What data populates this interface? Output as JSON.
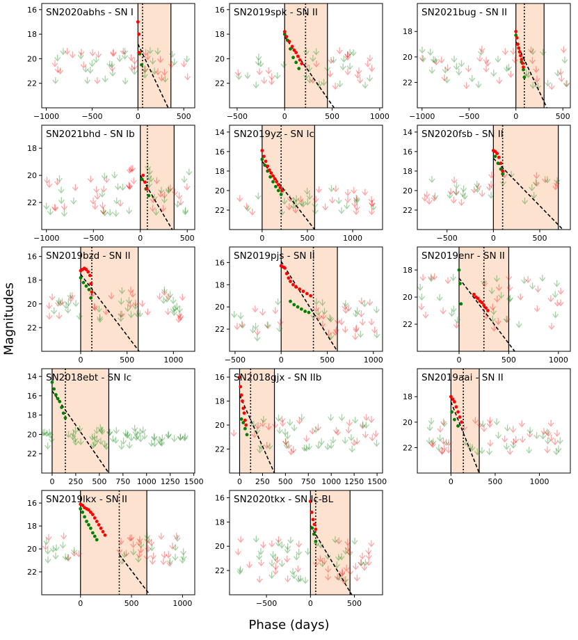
{
  "figure": {
    "xlabel": "Phase (days)",
    "ylabel": "Magnitudes"
  },
  "colors": {
    "red": "#ff0000",
    "green": "#008000",
    "window_fill": "#fde3cf",
    "fit_line": "#000000"
  },
  "chart_data": [
    {
      "type": "scatter",
      "title": "SN2020abhs - SN I",
      "xlim": [
        -1050,
        620
      ],
      "ylim": [
        24,
        15.5
      ],
      "xticks": [
        -1000,
        -500,
        0,
        500
      ],
      "yticks": [
        16,
        18,
        20,
        22
      ],
      "window": [
        0,
        360
      ],
      "peak": 50,
      "fit": [
        [
          0,
          18.8
        ],
        [
          330,
          24
        ]
      ],
      "det_r": [
        [
          0,
          17
        ],
        [
          10,
          18
        ],
        [
          15,
          19.5
        ]
      ],
      "det_g": [
        [
          10,
          19.5
        ],
        [
          20,
          19.6
        ],
        [
          40,
          20.5
        ]
      ],
      "ul_x": [
        -1000,
        550
      ],
      "ul_n": 60,
      "ul_mag": [
        19.5,
        22
      ]
    },
    {
      "type": "scatter",
      "title": "SN2019spk - SN II",
      "xlim": [
        -580,
        1030
      ],
      "ylim": [
        24,
        15.5
      ],
      "xticks": [
        -500,
        0,
        500,
        1000
      ],
      "yticks": [
        16,
        18,
        20,
        22
      ],
      "window": [
        0,
        450
      ],
      "peak": 220,
      "fit": [
        [
          0,
          18.2
        ],
        [
          520,
          24
        ]
      ],
      "det_r": [
        [
          0,
          17.8
        ],
        [
          20,
          18.2
        ],
        [
          50,
          18.6
        ],
        [
          80,
          19
        ],
        [
          100,
          19.3
        ],
        [
          120,
          19.5
        ],
        [
          140,
          19.8
        ],
        [
          160,
          20.1
        ],
        [
          180,
          20.4
        ]
      ],
      "det_g": [
        [
          0,
          18
        ],
        [
          30,
          18.5
        ],
        [
          60,
          19.2
        ],
        [
          90,
          19.9
        ],
        [
          120,
          20.3
        ],
        [
          150,
          20.8
        ]
      ],
      "ul_x": [
        -550,
        950
      ],
      "ul_n": 60,
      "ul_mag": [
        19.5,
        22.5
      ]
    },
    {
      "type": "scatter",
      "title": "SN2021bug - SN II",
      "xlim": [
        -1050,
        580
      ],
      "ylim": [
        24,
        15.8
      ],
      "xticks": [
        -1000,
        -500,
        0,
        500
      ],
      "yticks": [
        18,
        20,
        22
      ],
      "window": [
        0,
        300
      ],
      "peak": 90,
      "fit": [
        [
          0,
          18.8
        ],
        [
          330,
          24
        ]
      ],
      "det_r": [
        [
          0,
          18
        ],
        [
          10,
          18.5
        ],
        [
          20,
          19
        ],
        [
          30,
          19.3
        ],
        [
          40,
          19.6
        ],
        [
          50,
          19.9
        ],
        [
          60,
          20.2
        ],
        [
          70,
          20.5
        ],
        [
          80,
          20.8
        ]
      ],
      "det_g": [
        [
          0,
          18.3
        ],
        [
          20,
          19
        ],
        [
          40,
          19.6
        ],
        [
          60,
          20.4
        ],
        [
          80,
          21
        ],
        [
          90,
          21.6
        ]
      ],
      "ul_x": [
        -1000,
        550
      ],
      "ul_n": 60,
      "ul_mag": [
        19.5,
        22.5
      ]
    },
    {
      "type": "scatter",
      "title": "SN2021bhd - SN Ib",
      "xlim": [
        -1050,
        580
      ],
      "ylim": [
        24,
        16.3
      ],
      "xticks": [
        -1000,
        -500,
        0,
        500
      ],
      "yticks": [
        18,
        20,
        22
      ],
      "window": [
        0,
        360
      ],
      "peak": 75,
      "fit": [
        [
          0,
          20
        ],
        [
          340,
          24
        ]
      ],
      "det_r": [
        [
          30,
          20
        ],
        [
          50,
          20.5
        ],
        [
          70,
          21
        ]
      ],
      "det_g": [
        [
          20,
          20.3
        ],
        [
          60,
          21
        ],
        [
          90,
          21.5
        ]
      ],
      "ul_x": [
        -1000,
        520
      ],
      "ul_n": 70,
      "ul_mag": [
        19.5,
        23
      ]
    },
    {
      "type": "scatter",
      "title": "SN2019yz - SN Ic",
      "xlim": [
        -360,
        1330
      ],
      "ylim": [
        24,
        13.3
      ],
      "xticks": [
        0,
        500,
        1000
      ],
      "yticks": [
        14,
        16,
        18,
        20,
        22
      ],
      "window": [
        0,
        580
      ],
      "peak": 210,
      "fit": [
        [
          0,
          17
        ],
        [
          580,
          24
        ]
      ],
      "det_r": [
        [
          0,
          15.9
        ],
        [
          20,
          16.5
        ],
        [
          40,
          17
        ],
        [
          60,
          17.5
        ],
        [
          80,
          17.9
        ],
        [
          100,
          18.2
        ],
        [
          120,
          18.5
        ],
        [
          140,
          18.8
        ],
        [
          160,
          19.1
        ],
        [
          180,
          19.4
        ],
        [
          200,
          19.7
        ],
        [
          220,
          20
        ]
      ],
      "det_g": [
        [
          0,
          16.8
        ],
        [
          30,
          17.4
        ],
        [
          60,
          18
        ],
        [
          90,
          18.6
        ],
        [
          120,
          19.1
        ],
        [
          150,
          19.6
        ],
        [
          180,
          20
        ],
        [
          210,
          20.4
        ]
      ],
      "ul_x": [
        -300,
        1250
      ],
      "ul_n": 55,
      "ul_mag": [
        20,
        22.5
      ]
    },
    {
      "type": "scatter",
      "title": "SN2020fsb - SN II",
      "xlim": [
        -820,
        830
      ],
      "ylim": [
        24,
        13.3
      ],
      "xticks": [
        -500,
        0,
        500
      ],
      "yticks": [
        14,
        16,
        18,
        20,
        22
      ],
      "window": [
        0,
        700
      ],
      "peak": 100,
      "fit": [
        [
          0,
          16.7
        ],
        [
          750,
          24
        ]
      ],
      "det_r": [
        [
          0,
          15.9
        ],
        [
          20,
          16
        ],
        [
          40,
          16.2
        ],
        [
          60,
          16.6
        ],
        [
          80,
          17.2
        ],
        [
          100,
          18
        ]
      ],
      "det_g": [
        [
          20,
          16.5
        ],
        [
          50,
          17.2
        ],
        [
          80,
          17.8
        ],
        [
          100,
          18.3
        ]
      ],
      "ul_x": [
        -750,
        700
      ],
      "ul_n": 45,
      "ul_mag": [
        18.5,
        21.5
      ]
    },
    {
      "type": "scatter",
      "title": "SN2019bzd - SN II",
      "xlim": [
        -420,
        1230
      ],
      "ylim": [
        24,
        15.2
      ],
      "xticks": [
        0,
        500,
        1000
      ],
      "yticks": [
        16,
        18,
        20,
        22
      ],
      "window": [
        0,
        620
      ],
      "peak": 120,
      "fit": [
        [
          0,
          17.5
        ],
        [
          630,
          24
        ]
      ],
      "det_r": [
        [
          0,
          17.2
        ],
        [
          20,
          17.1
        ],
        [
          40,
          17
        ],
        [
          60,
          17.1
        ],
        [
          80,
          17.3
        ],
        [
          100,
          17.6
        ],
        [
          110,
          18.3
        ],
        [
          120,
          19
        ]
      ],
      "det_g": [
        [
          0,
          17.8
        ],
        [
          30,
          18.2
        ],
        [
          60,
          18.5
        ],
        [
          90,
          18.8
        ],
        [
          110,
          19.5
        ]
      ],
      "ul_x": [
        -400,
        1150
      ],
      "ul_n": 65,
      "ul_mag": [
        19,
        21.5
      ]
    },
    {
      "type": "scatter",
      "title": "SN2019pjs - SN II",
      "xlim": [
        -560,
        1100
      ],
      "ylim": [
        24,
        14.6
      ],
      "xticks": [
        -500,
        0,
        500,
        1000
      ],
      "yticks": [
        16,
        18,
        20,
        22
      ],
      "window": [
        0,
        610
      ],
      "peak": 350,
      "fit": [
        [
          0,
          15.9
        ],
        [
          610,
          24
        ]
      ],
      "det_r": [
        [
          0,
          16.3
        ],
        [
          20,
          16.4
        ],
        [
          40,
          16.5
        ],
        [
          60,
          17
        ],
        [
          80,
          17.4
        ],
        [
          100,
          17.7
        ],
        [
          130,
          18
        ],
        [
          160,
          18.2
        ],
        [
          200,
          18.4
        ],
        [
          240,
          18.6
        ],
        [
          280,
          18.8
        ],
        [
          320,
          19
        ]
      ],
      "det_g": [
        [
          100,
          19.5
        ],
        [
          140,
          19.8
        ],
        [
          180,
          20
        ],
        [
          220,
          20.2
        ],
        [
          260,
          20.4
        ],
        [
          300,
          20.5
        ]
      ],
      "ul_x": [
        -520,
        1050
      ],
      "ul_n": 75,
      "ul_mag": [
        19.5,
        23
      ]
    },
    {
      "type": "scatter",
      "title": "SN2019enr - SN II",
      "xlim": [
        -420,
        1120
      ],
      "ylim": [
        24,
        16.3
      ],
      "xticks": [
        0,
        500,
        1000
      ],
      "yticks": [
        18,
        20,
        22
      ],
      "window": [
        0,
        500
      ],
      "peak": 250,
      "fit": [
        [
          0,
          18.6
        ],
        [
          560,
          24
        ]
      ],
      "det_r": [
        [
          150,
          19.8
        ],
        [
          170,
          20
        ],
        [
          190,
          20.1
        ],
        [
          210,
          20.3
        ],
        [
          230,
          20.4
        ],
        [
          250,
          20.6
        ],
        [
          270,
          20.8
        ],
        [
          290,
          21
        ]
      ],
      "det_g": [
        [
          0,
          18
        ],
        [
          10,
          19
        ],
        [
          20,
          20.5
        ]
      ],
      "ul_x": [
        -400,
        1050
      ],
      "ul_n": 65,
      "ul_mag": [
        18.5,
        22.5
      ]
    },
    {
      "type": "scatter",
      "title": "SN2018ebt - SN Ic",
      "xlim": [
        -110,
        1510
      ],
      "ylim": [
        24,
        13.2
      ],
      "xticks": [
        0,
        250,
        500,
        750,
        1000,
        1250,
        1500
      ],
      "yticks": [
        14,
        16,
        18,
        20,
        22
      ],
      "window": [
        0,
        600
      ],
      "peak": 140,
      "fit": [
        [
          0,
          15.5
        ],
        [
          600,
          24
        ]
      ],
      "det_r": [],
      "det_g": [
        [
          0,
          14.6
        ],
        [
          20,
          15.3
        ],
        [
          40,
          15.9
        ],
        [
          60,
          16.3
        ],
        [
          80,
          16.6
        ],
        [
          100,
          17.2
        ],
        [
          120,
          17.8
        ],
        [
          140,
          18.3
        ]
      ],
      "ul_x": [
        -100,
        1450
      ],
      "ul_n": 70,
      "ul_mag": [
        19.5,
        21.5
      ],
      "ul_green_only": true
    },
    {
      "type": "scatter",
      "title": "SN2018gjx - SN IIb",
      "xlim": [
        -110,
        1560
      ],
      "ylim": [
        24,
        15.3
      ],
      "xticks": [
        0,
        250,
        500,
        750,
        1000,
        1250,
        1500
      ],
      "yticks": [
        16,
        18,
        20,
        22
      ],
      "window": [
        0,
        380
      ],
      "peak": 120,
      "fit": [
        [
          0,
          17.5
        ],
        [
          380,
          24
        ]
      ],
      "det_r": [
        [
          0,
          16
        ],
        [
          10,
          16.8
        ],
        [
          20,
          17.5
        ],
        [
          30,
          18
        ],
        [
          40,
          18.6
        ],
        [
          50,
          19
        ],
        [
          60,
          19.6
        ],
        [
          70,
          20
        ]
      ],
      "det_g": [
        [
          20,
          19.5
        ],
        [
          40,
          19.8
        ],
        [
          60,
          20.3
        ],
        [
          80,
          20.8
        ]
      ],
      "ul_x": [
        -80,
        1500
      ],
      "ul_n": 70,
      "ul_mag": [
        19.5,
        22.5
      ]
    },
    {
      "type": "scatter",
      "title": "SN2019aai - SN II",
      "xlim": [
        -380,
        1350
      ],
      "ylim": [
        24,
        15.8
      ],
      "xticks": [
        0,
        500,
        1000
      ],
      "yticks": [
        18,
        20,
        22
      ],
      "window": [
        0,
        320
      ],
      "peak": 140,
      "fit": [
        [
          0,
          18.4
        ],
        [
          320,
          24
        ]
      ],
      "det_r": [
        [
          0,
          18
        ],
        [
          20,
          18.2
        ],
        [
          40,
          18.4
        ],
        [
          60,
          18.8
        ],
        [
          80,
          19.2
        ],
        [
          100,
          19.6
        ],
        [
          120,
          20
        ]
      ],
      "det_g": [
        [
          10,
          19.2
        ],
        [
          40,
          19.8
        ],
        [
          80,
          20.3
        ]
      ],
      "ul_x": [
        -300,
        1250
      ],
      "ul_n": 65,
      "ul_mag": [
        20,
        22.5
      ]
    },
    {
      "type": "scatter",
      "title": "SN2019lkx - SN II",
      "xlim": [
        -380,
        1120
      ],
      "ylim": [
        24,
        14.9
      ],
      "xticks": [
        -500,
        0,
        500,
        1000
      ],
      "yticks": [
        16,
        18,
        20,
        22
      ],
      "window": [
        0,
        650
      ],
      "peak": 380,
      "fit": [
        [
          380,
          20.5
        ],
        [
          680,
          24
        ]
      ],
      "det_r": [
        [
          0,
          16.1
        ],
        [
          20,
          16.2
        ],
        [
          40,
          16.4
        ],
        [
          60,
          16.5
        ],
        [
          80,
          16.6
        ],
        [
          100,
          16.8
        ],
        [
          120,
          17
        ],
        [
          140,
          17.3
        ],
        [
          160,
          17.6
        ],
        [
          180,
          17.9
        ],
        [
          200,
          18.2
        ],
        [
          220,
          18.5
        ],
        [
          240,
          18.8
        ]
      ],
      "det_g": [
        [
          0,
          16.5
        ],
        [
          20,
          16.8
        ],
        [
          40,
          17.2
        ],
        [
          60,
          17.6
        ],
        [
          80,
          17.9
        ],
        [
          100,
          18.2
        ],
        [
          120,
          18.6
        ],
        [
          140,
          18.9
        ],
        [
          160,
          19.2
        ]
      ],
      "ul_x": [
        -350,
        1050
      ],
      "ul_n": 75,
      "ul_mag": [
        19,
        21.5
      ]
    },
    {
      "type": "scatter",
      "title": "SN2020tkx - SN Ic-BL",
      "xlim": [
        -920,
        820
      ],
      "ylim": [
        24,
        15.4
      ],
      "xticks": [
        -500,
        0,
        500
      ],
      "yticks": [
        16,
        18,
        20,
        22
      ],
      "window": [
        0,
        450
      ],
      "peak": 60,
      "fit": [
        [
          0,
          18.3
        ],
        [
          470,
          24
        ]
      ],
      "det_r": [
        [
          0,
          16.3
        ],
        [
          15,
          17.2
        ],
        [
          30,
          17.8
        ],
        [
          45,
          18.2
        ],
        [
          60,
          18.6
        ]
      ],
      "det_g": [
        [
          20,
          18.5
        ],
        [
          40,
          19
        ],
        [
          60,
          19.6
        ]
      ],
      "ul_x": [
        -880,
        700
      ],
      "ul_n": 80,
      "ul_mag": [
        19.5,
        23
      ]
    }
  ]
}
